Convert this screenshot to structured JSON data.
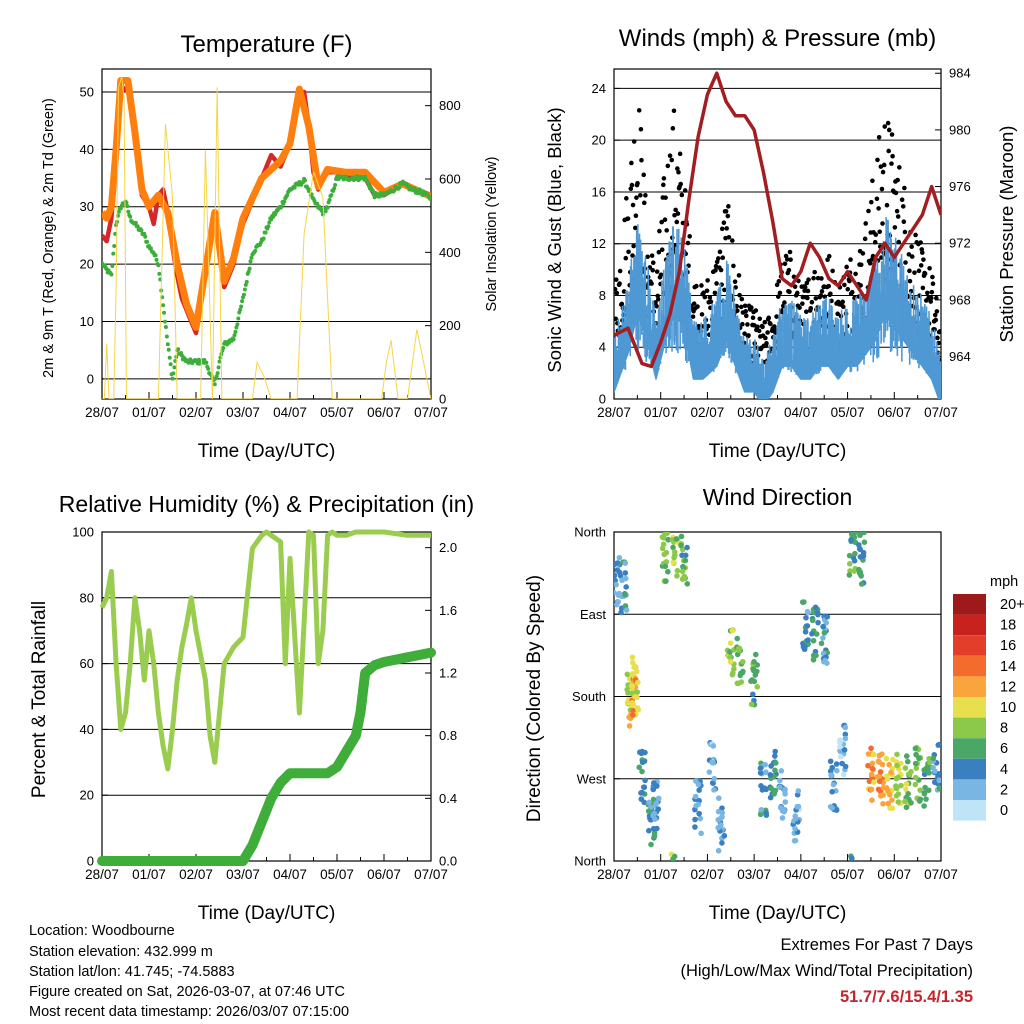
{
  "chart_data": [
    {
      "id": "temp",
      "type": "line",
      "title": "Temperature (F)",
      "xlabel": "Time (Day/UTC)",
      "ylabel": "2m & 9m T (Red, Orange) & 2m Td (Green)",
      "y2label": "Solar Insolation (Yellow)",
      "x_ticks": [
        "28/07",
        "01/07",
        "02/07",
        "03/07",
        "04/07",
        "05/07",
        "06/07",
        "07/07"
      ],
      "ylim": [
        -3.5,
        54
      ],
      "y_ticks": [
        0,
        10,
        20,
        30,
        40,
        50
      ],
      "y2lim": [
        0,
        900
      ],
      "y2_ticks": [
        0,
        200,
        400,
        600,
        800
      ],
      "grid": true,
      "series": [
        {
          "name": "2m T",
          "color": "#d62728",
          "x": [
            0,
            0.1,
            0.2,
            0.3,
            0.4,
            0.55,
            0.7,
            0.85,
            1.0,
            1.1,
            1.2,
            1.3,
            1.4,
            1.5,
            1.6,
            1.7,
            1.8,
            2.0,
            2.2,
            2.4,
            2.5,
            2.6,
            2.8,
            2.9,
            3.0,
            3.2,
            3.4,
            3.6,
            3.8,
            4.0,
            4.2,
            4.3,
            4.4,
            4.5,
            4.6,
            4.7,
            4.8,
            5.0,
            5.2,
            5.4,
            5.6,
            5.8,
            6.0,
            6.2,
            6.4,
            6.6,
            6.8,
            7.0
          ],
          "values": [
            25,
            24,
            28,
            38,
            50,
            51,
            42,
            32,
            30,
            27,
            32,
            33,
            29,
            23,
            18,
            14,
            12,
            8,
            18,
            28,
            23,
            16,
            20,
            24,
            27,
            31,
            35,
            39,
            37,
            41,
            50,
            50,
            44,
            36,
            33,
            35,
            36,
            36,
            35,
            36,
            35,
            32,
            32,
            33,
            34,
            33,
            32.5,
            31.5
          ]
        },
        {
          "name": "9m T",
          "color": "#ff7f0e",
          "x": [
            0,
            0.1,
            0.2,
            0.3,
            0.4,
            0.55,
            0.7,
            0.85,
            1.0,
            1.2,
            1.4,
            1.6,
            1.8,
            2.0,
            2.2,
            2.4,
            2.6,
            2.8,
            3.0,
            3.4,
            3.8,
            4.0,
            4.2,
            4.4,
            4.6,
            4.8,
            5.2,
            5.6,
            6.0,
            6.4,
            6.8,
            7.0
          ],
          "values": [
            29,
            28,
            30,
            40,
            52,
            52,
            43,
            33,
            30,
            32,
            29,
            20,
            13,
            9,
            19,
            29,
            17,
            21,
            28,
            35,
            38,
            41,
            50.5,
            44,
            33.5,
            36.5,
            36,
            36,
            32.5,
            34,
            32.5,
            31.8
          ]
        },
        {
          "name": "2m Td",
          "color": "#3cae3a",
          "x": [
            0,
            0.1,
            0.2,
            0.3,
            0.4,
            0.5,
            0.6,
            0.7,
            0.8,
            0.9,
            1.0,
            1.1,
            1.2,
            1.3,
            1.4,
            1.5,
            1.6,
            1.8,
            2.0,
            2.2,
            2.3,
            2.4,
            2.5,
            2.6,
            2.8,
            3.0,
            3.2,
            3.4,
            3.6,
            3.8,
            4.0,
            4.2,
            4.3,
            4.4,
            4.5,
            4.6,
            4.7,
            4.8,
            5.0,
            5.2,
            5.4,
            5.6,
            5.8,
            6.0,
            6.2,
            6.4,
            6.6,
            6.8,
            7.0
          ],
          "values": [
            20,
            19,
            18,
            27,
            30,
            31,
            28,
            27,
            26,
            25,
            23,
            22,
            20,
            13,
            6,
            0,
            5,
            3,
            3,
            3,
            1,
            -1,
            3,
            6,
            7,
            14,
            22,
            24,
            28,
            30,
            33,
            34,
            34.5,
            33,
            31,
            30,
            29,
            30,
            35,
            35,
            35,
            35,
            32,
            32,
            33,
            34,
            33,
            32.5,
            31.5
          ]
        },
        {
          "name": "Solar Insolation",
          "color": "#f5d547",
          "axis": "y2",
          "x": [
            0,
            0.05,
            0.1,
            0.15,
            0.2,
            0.25,
            0.3,
            0.35,
            0.42,
            0.47,
            0.52,
            0.6,
            0.9,
            1.0,
            1.2,
            1.35,
            1.5,
            1.6,
            1.8,
            2.0,
            2.1,
            2.2,
            2.35,
            2.45,
            2.55,
            2.7,
            3.0,
            3.2,
            3.3,
            3.45,
            3.6,
            3.8,
            4.0,
            4.15,
            4.3,
            4.5,
            4.7,
            4.9,
            5.05,
            5.15,
            5.25,
            5.4,
            5.6,
            5.8,
            5.95,
            6.05,
            6.15,
            6.3,
            6.5,
            6.7,
            7.0
          ],
          "values": [
            0,
            0,
            150,
            0,
            0,
            0,
            300,
            850,
            880,
            820,
            0,
            0,
            0,
            0,
            0,
            750,
            550,
            0,
            0,
            0,
            0,
            680,
            0,
            850,
            0,
            0,
            0,
            0,
            100,
            60,
            0,
            0,
            0,
            0,
            450,
            620,
            550,
            0,
            0,
            0,
            0,
            0,
            0,
            0,
            0,
            100,
            160,
            0,
            0,
            190,
            0
          ]
        }
      ]
    },
    {
      "id": "wind",
      "type": "scatter",
      "title": "Winds (mph) & Pressure (mb)",
      "xlabel": "Time (Day/UTC)",
      "ylabel": "Sonic Wind & Gust (Blue, Black)",
      "y2label": "Station Pressure (Maroon)",
      "x_ticks": [
        "28/07",
        "01/07",
        "02/07",
        "03/07",
        "04/07",
        "05/07",
        "06/07",
        "07/07"
      ],
      "ylim": [
        0,
        25.5
      ],
      "y_ticks": [
        0,
        4,
        8,
        12,
        16,
        20,
        24
      ],
      "y2lim": [
        961,
        984.3
      ],
      "y2_ticks": [
        964,
        968,
        972,
        976,
        980,
        984
      ],
      "grid": true,
      "series": [
        {
          "name": "Sonic Wind",
          "color": "#4f98d4",
          "x": [
            0,
            0.3,
            0.5,
            0.7,
            0.9,
            1.1,
            1.3,
            1.5,
            1.7,
            1.9,
            2.2,
            2.4,
            2.6,
            2.8,
            3.0,
            3.2,
            3.4,
            3.6,
            3.8,
            4.0,
            4.2,
            4.4,
            4.6,
            4.8,
            5.0,
            5.2,
            5.4,
            5.6,
            5.8,
            6.0,
            6.2,
            6.4,
            6.6,
            6.8,
            7.0
          ],
          "values": [
            3,
            6,
            9,
            7,
            4,
            7,
            9,
            8,
            4,
            4,
            5,
            7,
            5,
            3,
            3,
            2,
            3,
            5,
            5,
            4,
            4,
            5,
            5,
            4,
            5,
            5,
            6,
            7,
            9,
            8,
            7,
            6,
            5,
            4,
            2
          ]
        },
        {
          "name": "Gust",
          "color": "#000000",
          "x": [
            0,
            0.3,
            0.5,
            0.7,
            0.9,
            1.1,
            1.3,
            1.5,
            1.7,
            1.9,
            2.2,
            2.4,
            2.6,
            2.8,
            3.0,
            3.2,
            3.4,
            3.6,
            3.8,
            4.0,
            4.2,
            4.4,
            4.6,
            4.8,
            5.0,
            5.2,
            5.4,
            5.6,
            5.8,
            6.0,
            6.2,
            6.4,
            6.6,
            6.8,
            7.0
          ],
          "values": [
            6,
            12,
            18,
            10,
            7,
            13,
            16,
            12,
            7,
            6,
            8,
            11,
            8,
            5,
            5,
            4,
            5,
            8,
            8,
            6,
            7,
            8,
            8,
            6,
            8,
            8,
            10,
            13,
            16,
            14,
            12,
            10,
            8,
            7,
            4
          ]
        },
        {
          "name": "Station Pressure",
          "color": "#a31e22",
          "axis": "y2",
          "x": [
            0,
            0.3,
            0.6,
            0.8,
            1.0,
            1.2,
            1.4,
            1.6,
            1.8,
            2.0,
            2.2,
            2.4,
            2.6,
            2.8,
            3.0,
            3.2,
            3.4,
            3.6,
            3.8,
            4.0,
            4.2,
            4.4,
            4.6,
            4.8,
            5.0,
            5.2,
            5.4,
            5.6,
            5.8,
            6.0,
            6.2,
            6.4,
            6.6,
            6.8,
            7.0
          ],
          "values": [
            965.5,
            966,
            963.5,
            963.3,
            965,
            967,
            970,
            975,
            979.5,
            982.5,
            984,
            982,
            981,
            981,
            980,
            977,
            973.5,
            969.5,
            969,
            970,
            972,
            971,
            969.5,
            969,
            970,
            969,
            968,
            971,
            972,
            971,
            972,
            973,
            974,
            976,
            974
          ]
        }
      ]
    },
    {
      "id": "rh",
      "type": "line",
      "title": "Relative Humidity (%) & Precipitation (in)",
      "xlabel": "Time (Day/UTC)",
      "ylabel": "Percent & Total Rainfall",
      "x_ticks": [
        "28/07",
        "01/07",
        "02/07",
        "03/07",
        "04/07",
        "05/07",
        "06/07",
        "07/07"
      ],
      "ylim": [
        0,
        100
      ],
      "y_ticks": [
        0,
        20,
        40,
        60,
        80,
        100
      ],
      "y2lim": [
        0,
        2.1
      ],
      "y2_ticks": [
        "0.0",
        "0.4",
        "0.8",
        "1.2",
        "1.6",
        "2.0"
      ],
      "grid": true,
      "series": [
        {
          "name": "Relative Humidity",
          "color": "#9acd4f",
          "x": [
            0,
            0.1,
            0.2,
            0.3,
            0.4,
            0.5,
            0.6,
            0.7,
            0.8,
            0.9,
            1.0,
            1.1,
            1.2,
            1.3,
            1.4,
            1.5,
            1.6,
            1.7,
            1.8,
            1.9,
            2.0,
            2.2,
            2.3,
            2.4,
            2.5,
            2.6,
            2.8,
            3.0,
            3.2,
            3.4,
            3.5,
            3.6,
            3.7,
            3.8,
            3.9,
            4.0,
            4.2,
            4.4,
            4.5,
            4.6,
            4.7,
            4.8,
            4.9,
            5.0,
            5.2,
            5.4,
            5.6,
            5.8,
            6.0,
            6.5,
            7.0
          ],
          "values": [
            77,
            80,
            88,
            60,
            40,
            45,
            60,
            80,
            70,
            55,
            70,
            60,
            45,
            35,
            28,
            40,
            55,
            65,
            72,
            80,
            70,
            55,
            38,
            30,
            45,
            60,
            65,
            68,
            95,
            99,
            100,
            99,
            98,
            97,
            60,
            92,
            45,
            100,
            99,
            60,
            70,
            99,
            100,
            99,
            99,
            100,
            100,
            100,
            100,
            99,
            99
          ]
        },
        {
          "name": "Total Rainfall",
          "color": "#3fad3a",
          "axis": "y2",
          "x": [
            0,
            1.0,
            2.0,
            3.0,
            3.2,
            3.4,
            3.6,
            3.8,
            4.0,
            4.2,
            4.4,
            4.6,
            4.8,
            5.0,
            5.2,
            5.4,
            5.5,
            5.6,
            5.8,
            6.0,
            6.5,
            7.0
          ],
          "values": [
            0,
            0,
            0,
            0,
            0.1,
            0.25,
            0.4,
            0.5,
            0.56,
            0.56,
            0.56,
            0.56,
            0.56,
            0.6,
            0.7,
            0.8,
            0.95,
            1.2,
            1.25,
            1.27,
            1.3,
            1.33
          ]
        }
      ]
    },
    {
      "id": "dir",
      "type": "scatter",
      "title": "Wind Direction",
      "xlabel": "Time (Day/UTC)",
      "ylabel": "Direction (Colored By Speed)",
      "x_ticks": [
        "28/07",
        "01/07",
        "02/07",
        "03/07",
        "04/07",
        "05/07",
        "06/07",
        "07/07"
      ],
      "y_ticks": [
        "North",
        "West",
        "South",
        "East",
        "North"
      ],
      "ylim": [
        0,
        360
      ],
      "grid": true,
      "legend": {
        "title": "mph",
        "labels": [
          "20+",
          "18",
          "16",
          "14",
          "12",
          "10",
          "8",
          "6",
          "4",
          "2",
          "0"
        ],
        "colors": [
          "#9e1a1a",
          "#c8221f",
          "#e33e2a",
          "#f36b2d",
          "#f9a43d",
          "#e7e04c",
          "#8cc94a",
          "#4aa766",
          "#3a7fc0",
          "#79b6e3",
          "#bfe3f7"
        ]
      },
      "series": [
        {
          "name": "Direction",
          "x": [
            0.05,
            0.2,
            0.35,
            0.4,
            0.45,
            0.6,
            0.8,
            0.9,
            1.1,
            1.3,
            1.5,
            1.8,
            2.1,
            2.3,
            2.5,
            2.7,
            3.0,
            3.2,
            3.4,
            3.6,
            3.9,
            4.1,
            4.3,
            4.5,
            4.7,
            4.9,
            5.1,
            5.3,
            5.5,
            5.7,
            5.9,
            6.1,
            6.3,
            6.5,
            6.7,
            6.9
          ],
          "direction": [
            310,
            300,
            175,
            185,
            195,
            90,
            40,
            60,
            330,
            340,
            330,
            60,
            100,
            40,
            230,
            215,
            200,
            80,
            90,
            75,
            50,
            260,
            250,
            240,
            80,
            120,
            340,
            330,
            95,
            90,
            85,
            90,
            85,
            95,
            90,
            100
          ],
          "speed": [
            3,
            4,
            10,
            12,
            9,
            5,
            4,
            3,
            7,
            8,
            6,
            3,
            2,
            3,
            8,
            7,
            6,
            4,
            5,
            3,
            2,
            4,
            5,
            4,
            3,
            2,
            6,
            5,
            12,
            13,
            11,
            9,
            8,
            7,
            6,
            4
          ]
        }
      ]
    }
  ],
  "footer": {
    "location": "Location: Woodbourne",
    "elevation": "Station elevation: 432.999 m",
    "latlon": "Station lat/lon: 41.745; -74.5883",
    "created": "Figure created on Sat, 2026-03-07, at 07:46 UTC",
    "recent": "Most recent data timestamp: 2026/03/07 07:15:00"
  },
  "extremes": {
    "title": "Extremes For Past 7 Days",
    "subtitle": "(High/Low/Max Wind/Total Precipitation)",
    "values": "51.7/7.6/15.4/1.35",
    "values_color": "#c1272d"
  }
}
